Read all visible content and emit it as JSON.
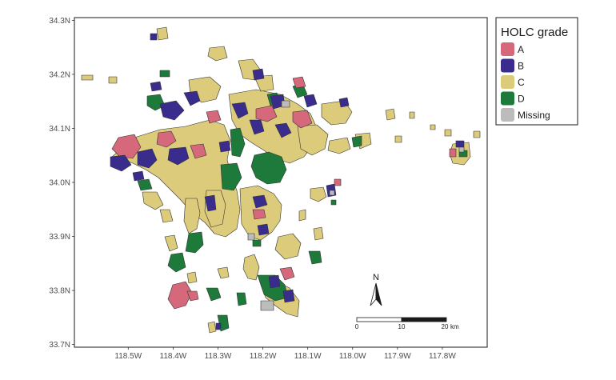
{
  "map": {
    "lon_range": [
      118.62,
      117.7
    ],
    "lat_range": [
      33.695,
      34.305
    ],
    "x_ticks": [
      {
        "value": 118.5,
        "label": "118.5W"
      },
      {
        "value": 118.4,
        "label": "118.4W"
      },
      {
        "value": 118.3,
        "label": "118.3W"
      },
      {
        "value": 118.2,
        "label": "118.2W"
      },
      {
        "value": 118.1,
        "label": "118.1W"
      },
      {
        "value": 118.0,
        "label": "118.0W"
      },
      {
        "value": 117.9,
        "label": "117.9W"
      },
      {
        "value": 117.8,
        "label": "117.8W"
      }
    ],
    "y_ticks": [
      {
        "value": 34.3,
        "label": "34.3N"
      },
      {
        "value": 34.2,
        "label": "34.2N"
      },
      {
        "value": 34.1,
        "label": "34.1N"
      },
      {
        "value": 34.0,
        "label": "34.0N"
      },
      {
        "value": 33.9,
        "label": "33.9N"
      },
      {
        "value": 33.8,
        "label": "33.8N"
      },
      {
        "value": 33.7,
        "label": "33.7N"
      }
    ]
  },
  "legend": {
    "title": "HOLC grade",
    "position": "right",
    "items": [
      {
        "key": "A",
        "label": "A",
        "color": "#d6687b"
      },
      {
        "key": "B",
        "label": "B",
        "color": "#3a2c8c"
      },
      {
        "key": "C",
        "label": "C",
        "color": "#dccb7a"
      },
      {
        "key": "D",
        "label": "D",
        "color": "#1e7a3a"
      },
      {
        "key": "Missing",
        "label": "Missing",
        "color": "#bcbcbc"
      }
    ]
  },
  "north_arrow": {
    "label": "N"
  },
  "scale_bar": {
    "ticks": [
      "0",
      "10",
      "20"
    ],
    "unit": "km"
  }
}
